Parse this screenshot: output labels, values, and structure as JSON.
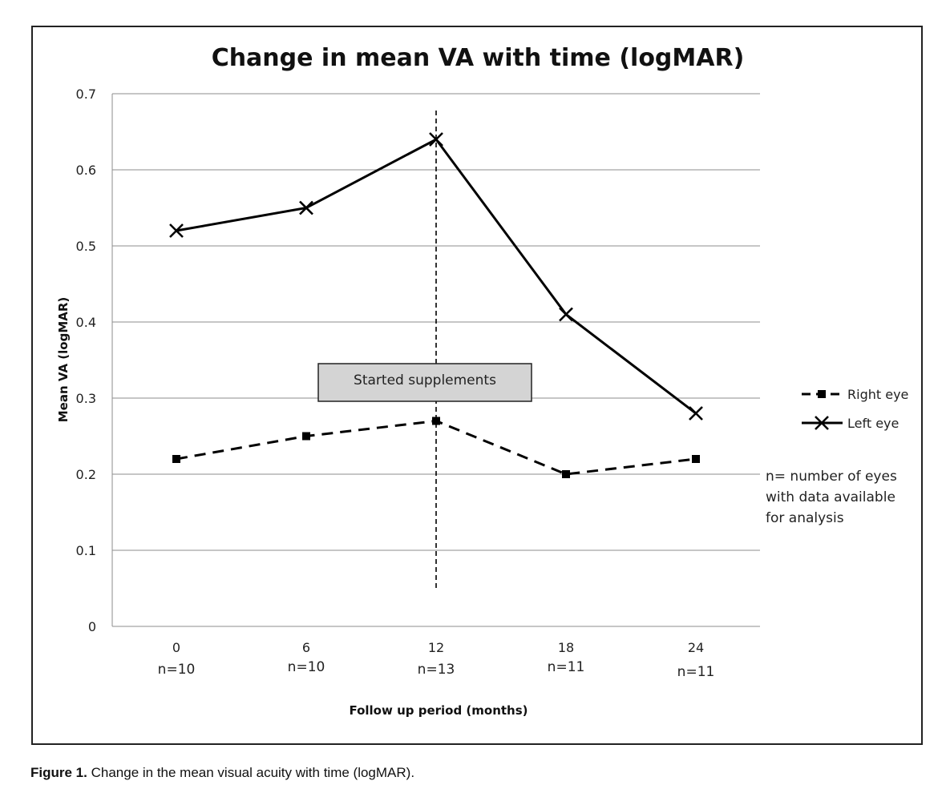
{
  "caption": {
    "label": "Figure 1.",
    "text": "Change in the mean visual acuity with time (logMAR)."
  },
  "chart_data": {
    "type": "line",
    "title": "Change in mean VA with time (logMAR)",
    "xlabel": "Follow up period (months)",
    "ylabel": "Mean VA (logMAR)",
    "categories": [
      "0",
      "6",
      "12",
      "18",
      "24"
    ],
    "n_labels": [
      "n=10",
      "n=10",
      "n=13",
      "n=11",
      "n=11"
    ],
    "ylim": [
      0,
      0.7
    ],
    "yticks": [
      0,
      0.1,
      0.2,
      0.3,
      0.4,
      0.5,
      0.6,
      0.7
    ],
    "grid": true,
    "legend_position": "right",
    "series": [
      {
        "name": "Right eye",
        "values": [
          0.22,
          0.25,
          0.27,
          0.2,
          0.22
        ],
        "marker": "square",
        "line": "dashed",
        "color": "#000000"
      },
      {
        "name": "Left eye",
        "values": [
          0.52,
          0.55,
          0.64,
          0.41,
          0.28
        ],
        "marker": "x",
        "line": "solid",
        "color": "#000000"
      }
    ],
    "annotations": {
      "vline_category": "12",
      "box_text": "Started supplements",
      "note_lines": [
        "n= number of eyes",
        "with data available",
        "for analysis"
      ]
    },
    "colors": {
      "grid": "#8c8c8c",
      "box_fill": "#d4d4d4",
      "line": "#000000"
    }
  }
}
